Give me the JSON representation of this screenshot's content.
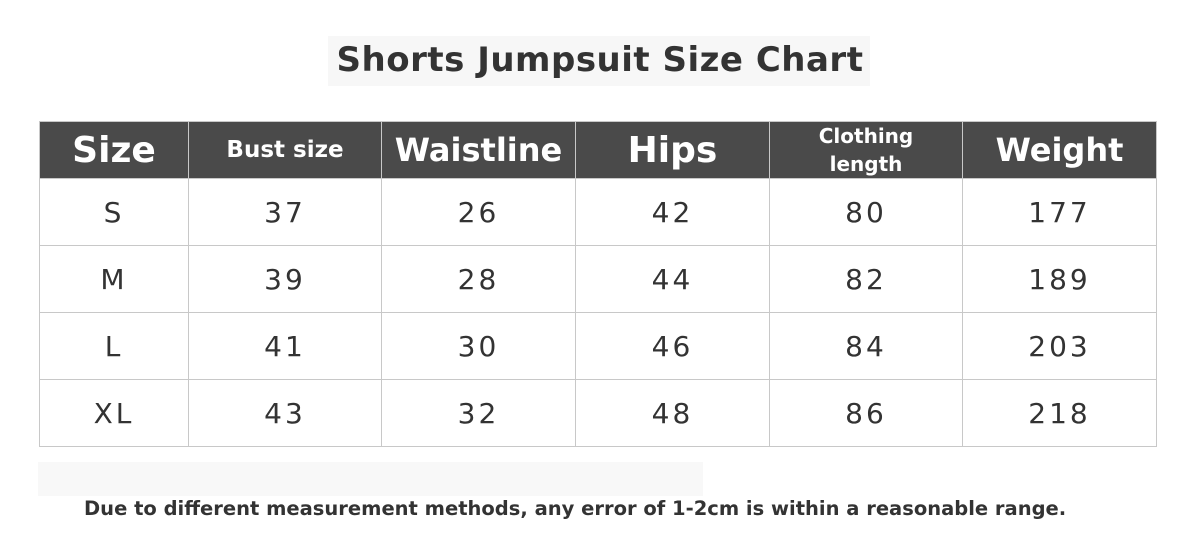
{
  "title": "Shorts Jumpsuit Size Chart",
  "table": {
    "headers": [
      "Size",
      "Bust size",
      "Waistline",
      "Hips",
      "Clothing length",
      "Weight"
    ],
    "rows": [
      [
        "S",
        "37",
        "26",
        "42",
        "80",
        "177"
      ],
      [
        "M",
        "39",
        "28",
        "44",
        "82",
        "189"
      ],
      [
        "L",
        "41",
        "30",
        "46",
        "84",
        "203"
      ],
      [
        "XL",
        "43",
        "32",
        "48",
        "86",
        "218"
      ]
    ]
  },
  "note": "Due to different measurement methods, any error of 1-2cm is within a reasonable range.",
  "colors": {
    "header_bg": "#4a4a4a",
    "header_text": "#ffffff",
    "border": "#c8c8c8"
  }
}
